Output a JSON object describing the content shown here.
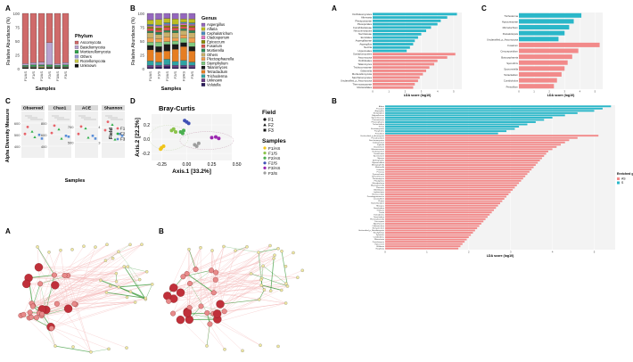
{
  "panel_letters": {
    "tl_a": "A",
    "tl_b": "B",
    "tl_c": "C",
    "tl_d": "D",
    "net_a": "A",
    "net_b": "B",
    "r_a": "A",
    "r_c": "C",
    "r_b": "B"
  },
  "chart_data": [
    {
      "type": "bar",
      "id": "phylum",
      "stacked": true,
      "ylabel": "Relative Abundance (%)",
      "xlabel": "Samples",
      "ylim": [
        0,
        100
      ],
      "yticks": [
        0,
        25,
        50,
        75,
        100
      ],
      "categories": [
        "F1/AS",
        "F1/S",
        "F2/AS",
        "F2/S",
        "F3/AS",
        "F3/S"
      ],
      "legend_title": "Phylum",
      "series": [
        {
          "name": "Unknown",
          "color": "#111111",
          "values": [
            2,
            2,
            2,
            2,
            2,
            2
          ]
        },
        {
          "name": "Rozellomycota",
          "color": "#c7c94a",
          "values": [
            1,
            1,
            2,
            1,
            1,
            1
          ]
        },
        {
          "name": "Others",
          "color": "#9a9ad4",
          "values": [
            1,
            1,
            1,
            1,
            1,
            1
          ]
        },
        {
          "name": "Mortierellomycota",
          "color": "#2fa34a",
          "values": [
            2,
            3,
            2,
            3,
            2,
            3
          ]
        },
        {
          "name": "Basidiomycota",
          "color": "#b9a3cf",
          "values": [
            3,
            4,
            5,
            40,
            3,
            4
          ]
        },
        {
          "name": "Ascomycota",
          "color": "#cf6a6a",
          "values": [
            91,
            89,
            88,
            53,
            91,
            89
          ]
        }
      ]
    },
    {
      "type": "bar",
      "id": "genus",
      "stacked": true,
      "ylabel": "Relative Abundance (%)",
      "xlabel": "Samples",
      "ylim": [
        0,
        100
      ],
      "yticks": [
        0,
        25,
        50,
        75,
        100
      ],
      "categories": [
        "F1/AS",
        "F1/S",
        "F2/AS",
        "F2/S",
        "F3/AS",
        "F3/S"
      ],
      "legend_title": "Genus",
      "series": [
        {
          "name": "Volutella",
          "color": "#2b1b5c",
          "values": [
            2,
            3,
            4,
            2,
            3,
            2
          ]
        },
        {
          "name": "Unknown",
          "color": "#6b3f87",
          "values": [
            4,
            3,
            3,
            4,
            3,
            4
          ]
        },
        {
          "name": "Trichoderma",
          "color": "#2fa3a3",
          "values": [
            8,
            6,
            10,
            7,
            9,
            6
          ]
        },
        {
          "name": "Tetracladium",
          "color": "#e67e22",
          "values": [
            20,
            18,
            15,
            22,
            25,
            20
          ]
        },
        {
          "name": "Talaromyces",
          "color": "#1a1a1a",
          "values": [
            8,
            10,
            12,
            9,
            7,
            8
          ]
        },
        {
          "name": "Stemphylium",
          "color": "#7fc97f",
          "values": [
            6,
            8,
            5,
            6,
            8,
            7
          ]
        },
        {
          "name": "Plectosphaerella",
          "color": "#f0a050",
          "values": [
            7,
            6,
            8,
            5,
            6,
            9
          ]
        },
        {
          "name": "Others",
          "color": "#c9b06a",
          "values": [
            10,
            8,
            9,
            10,
            8,
            9
          ]
        },
        {
          "name": "Mortierella",
          "color": "#2e8b57",
          "values": [
            3,
            4,
            3,
            4,
            3,
            4
          ]
        },
        {
          "name": "Fusarium",
          "color": "#d9534f",
          "values": [
            5,
            4,
            6,
            5,
            4,
            6
          ]
        },
        {
          "name": "Epicoccum",
          "color": "#8b8b00",
          "values": [
            3,
            4,
            3,
            2,
            3,
            3
          ]
        },
        {
          "name": "Cladosporium",
          "color": "#e377c2",
          "values": [
            2,
            3,
            2,
            2,
            3,
            2
          ]
        },
        {
          "name": "Cephalotrichum",
          "color": "#4b8bbe",
          "values": [
            2,
            2,
            3,
            2,
            2,
            3
          ]
        },
        {
          "name": "Alfaria",
          "color": "#bcbd22",
          "values": [
            8,
            10,
            8,
            10,
            6,
            7
          ]
        },
        {
          "name": "Aspergillus",
          "color": "#9467bd",
          "values": [
            12,
            11,
            9,
            10,
            10,
            10
          ]
        }
      ]
    },
    {
      "type": "scatter",
      "id": "alpha",
      "ylabel": "Alpha Diversity Measure",
      "xlabel": "Samples",
      "legend_title": "Field",
      "legend": [
        "F1",
        "F2",
        "F3"
      ],
      "facets": [
        {
          "name": "Observed",
          "yticks": [
            "400",
            "500",
            "600"
          ]
        },
        {
          "name": "Chao1",
          "yticks": [
            "400",
            "600",
            "800"
          ]
        },
        {
          "name": "ACE",
          "yticks": [
            "500",
            "700"
          ]
        },
        {
          "name": "Shannon",
          "yticks": [
            "3",
            "4"
          ]
        }
      ],
      "colors": {
        "F1": "#e8636a",
        "F2": "#2fb04a",
        "F3": "#5b8fd8"
      }
    },
    {
      "type": "scatter",
      "id": "pcoa",
      "title": "Bray-Curtis",
      "xlabel": "Axis.1   [33.2%]",
      "ylabel": "Axis.2   [22.2%]",
      "xlim": [
        -0.35,
        0.45
      ],
      "ylim": [
        -0.3,
        0.35
      ],
      "xticks": [
        -0.25,
        0.0,
        0.25,
        0.5
      ],
      "yticks": [
        -0.2,
        0.0,
        0.2
      ],
      "field_legend_title": "Field",
      "field_legend": [
        "F1",
        "F2",
        "F3"
      ],
      "samples_legend_title": "Samples",
      "samples_legend": [
        {
          "name": "F1/AS",
          "color": "#f0c419"
        },
        {
          "name": "F1/S",
          "color": "#8bc34a"
        },
        {
          "name": "F2/AS",
          "color": "#4caf50"
        },
        {
          "name": "F2/S",
          "color": "#3f51b5"
        },
        {
          "name": "F3/AS",
          "color": "#9c27b0"
        },
        {
          "name": "F3/S",
          "color": "#9e9e9e"
        }
      ],
      "points": [
        {
          "x": -0.25,
          "y": -0.12,
          "g": "F1/AS"
        },
        {
          "x": -0.23,
          "y": -0.1,
          "g": "F1/AS"
        },
        {
          "x": -0.26,
          "y": -0.14,
          "g": "F1/AS"
        },
        {
          "x": -0.15,
          "y": 0.12,
          "g": "F1/S"
        },
        {
          "x": -0.13,
          "y": 0.14,
          "g": "F1/S"
        },
        {
          "x": -0.11,
          "y": 0.1,
          "g": "F1/S"
        },
        {
          "x": -0.03,
          "y": 0.12,
          "g": "F2/AS"
        },
        {
          "x": -0.06,
          "y": 0.1,
          "g": "F2/AS"
        },
        {
          "x": -0.04,
          "y": 0.08,
          "g": "F2/AS"
        },
        {
          "x": 0.0,
          "y": 0.24,
          "g": "F2/S"
        },
        {
          "x": -0.02,
          "y": 0.26,
          "g": "F2/S"
        },
        {
          "x": 0.02,
          "y": 0.22,
          "g": "F2/S"
        },
        {
          "x": 0.25,
          "y": 0.02,
          "g": "F3/AS"
        },
        {
          "x": 0.29,
          "y": 0.03,
          "g": "F3/AS"
        },
        {
          "x": 0.32,
          "y": 0.01,
          "g": "F3/AS"
        },
        {
          "x": 0.08,
          "y": -0.08,
          "g": "F3/S"
        },
        {
          "x": 0.12,
          "y": -0.06,
          "g": "F3/S"
        },
        {
          "x": 0.1,
          "y": -0.1,
          "g": "F3/S"
        }
      ]
    },
    {
      "type": "bar",
      "id": "lefse_a",
      "orientation": "horizontal",
      "xlabel": "LDA score (log10)",
      "xticks": [
        "0",
        "1",
        "2",
        "3",
        "4",
        "5"
      ],
      "max": 5.5,
      "labels": [
        "Dothideomycetes",
        "Alternaria",
        "Pleosporaceae",
        "Pleosporales",
        "Cucurbitariaceae",
        "Neocosmospora",
        "Nectriaceae",
        "Eurotiales",
        "Aspergillaceae",
        "Aspergillus",
        "Nectria",
        "Hypocreales",
        "Sordariomycetes",
        "Ascomycota",
        "Dothideales",
        "Talaromyces",
        "Trichocomaceae",
        "Gibberella",
        "Mortierellomycota",
        "Saccharomycetes",
        "Unclassified_p_Ascomycota",
        "Thermoascaceae",
        "Mortierellales"
      ],
      "values": [
        5.2,
        4.6,
        4.2,
        4.0,
        3.6,
        3.3,
        3.0,
        2.8,
        2.6,
        2.5,
        2.3,
        2.1,
        5.1,
        4.6,
        4.0,
        3.8,
        3.5,
        3.3,
        3.1,
        2.9,
        2.8,
        2.6,
        2.5
      ],
      "groups": [
        "S",
        "S",
        "S",
        "S",
        "S",
        "S",
        "S",
        "S",
        "S",
        "S",
        "S",
        "S",
        "AS",
        "AS",
        "AS",
        "AS",
        "AS",
        "AS",
        "AS",
        "AS",
        "AS",
        "AS",
        "AS"
      ]
    },
    {
      "type": "bar",
      "id": "lefse_c",
      "orientation": "horizontal",
      "xlabel": "LDA score (log10)",
      "xticks": [
        "0",
        "1",
        "2",
        "3",
        "4",
        "5"
      ],
      "max": 5.5,
      "labels": [
        "Trichoderma",
        "Hypocreaceae",
        "Microdochium",
        "Pestalotiopsis",
        "Unclassified_p_Ascomycota",
        "Fusarium",
        "Cercosporidium",
        "Botryosphaeria",
        "Sporothrix",
        "Sporormiella",
        "Tetracladium",
        "Conidiobolus",
        "Penicillium"
      ],
      "values": [
        4.1,
        3.6,
        3.3,
        3.0,
        2.6,
        5.3,
        3.9,
        3.5,
        3.2,
        3.0,
        2.8,
        2.5,
        2.3
      ],
      "groups": [
        "S",
        "S",
        "S",
        "S",
        "S",
        "AS",
        "AS",
        "AS",
        "AS",
        "AS",
        "AS",
        "AS",
        "AS"
      ]
    },
    {
      "type": "bar",
      "id": "lefse_b",
      "orientation": "horizontal",
      "xlabel": "LDA score (log10)",
      "xticks": [
        "0",
        "1",
        "2",
        "3",
        "4",
        "5"
      ],
      "max": 5.5,
      "legend_title": "Enriched group",
      "legend": [
        {
          "name": "AS",
          "color": "#f28a8a"
        },
        {
          "name": "S",
          "color": "#2ab7c9"
        }
      ],
      "labels": [
        "Alfaria",
        "Fusarium",
        "Aspergillus",
        "Stemphylium",
        "Didymellaceae",
        "Sporormiaceae",
        "Periconiaceae",
        "Phaeosphaeria",
        "Trichocladium",
        "Kernia",
        "Eurotiomycetes",
        "Paraphoma",
        "Penicillium",
        "Unclassified_p_Ascomycota",
        "Pseudeurotium",
        "Saccharomycetes",
        "Cladosporium",
        "Zopfiella",
        "Chaetomium",
        "Microascaceae",
        "Scedosporium",
        "Coniochaeta",
        "Acremonium",
        "Mycena",
        "Arthrographis",
        "Myrmecridium",
        "Monographella",
        "Mortierella",
        "Dokmaia",
        "Preussia",
        "Pyrenochaeta",
        "Schizothecium",
        "Thermomyces",
        "Phialophora",
        "Microdochium",
        "Mycosphaerella",
        "Pleurotus",
        "Gibellulopsis",
        "Lophiostoma",
        "Neoascochyta",
        "Pseudogymnoascus",
        "Lecanicillium",
        "Phoma",
        "Ramichloridium",
        "Rhizopus",
        "Sarocladium",
        "Thielavia",
        "Torula",
        "Trichoderma",
        "Tetracladium",
        "Plectosphaerella",
        "Cercospora",
        "Myrothecium",
        "Colletotrichum",
        "Botryotrichum",
        "Unclassified_p_Basidiomycota",
        "Stachybotrys",
        "Xylariales",
        "Conidiobolus",
        "Rhizoctonia",
        "Paecilomyces",
        "Epicoccum",
        "Wallemia",
        "Exophiala"
      ],
      "values": [
        5.4,
        5.2,
        5.0,
        4.6,
        4.3,
        4.0,
        3.8,
        3.6,
        3.4,
        3.2,
        3.1,
        2.9,
        2.7,
        5.1,
        4.6,
        4.4,
        4.3,
        4.2,
        4.1,
        4.0,
        3.9,
        3.85,
        3.8,
        3.75,
        3.7,
        3.65,
        3.6,
        3.55,
        3.5,
        3.45,
        3.4,
        3.35,
        3.3,
        3.25,
        3.2,
        3.15,
        3.1,
        3.05,
        3.0,
        2.95,
        2.9,
        2.85,
        2.8,
        2.75,
        2.7,
        2.65,
        2.6,
        2.55,
        2.5,
        2.45,
        2.4,
        2.35,
        2.3,
        2.25,
        2.2,
        2.15,
        2.1,
        2.05,
        2.0,
        1.95,
        1.9,
        1.85,
        1.8,
        1.75
      ],
      "groups": [
        "S",
        "S",
        "S",
        "S",
        "S",
        "S",
        "S",
        "S",
        "S",
        "S",
        "S",
        "S",
        "S",
        "AS",
        "AS",
        "AS",
        "AS",
        "AS",
        "AS",
        "AS",
        "AS",
        "AS",
        "AS",
        "AS",
        "AS",
        "AS",
        "AS",
        "AS",
        "AS",
        "AS",
        "AS",
        "AS",
        "AS",
        "AS",
        "AS",
        "AS",
        "AS",
        "AS",
        "AS",
        "AS",
        "AS",
        "AS",
        "AS",
        "AS",
        "AS",
        "AS",
        "AS",
        "AS",
        "AS",
        "AS",
        "AS",
        "AS",
        "AS",
        "AS",
        "AS",
        "AS",
        "AS",
        "AS",
        "AS",
        "AS",
        "AS",
        "AS",
        "AS",
        "AS"
      ]
    }
  ],
  "colors": {
    "teal": "#2ab7c9",
    "salmon": "#f28a8a",
    "network_red": "#c0303a",
    "network_pink": "#f4b6b6",
    "network_green": "#3a9a3a"
  }
}
